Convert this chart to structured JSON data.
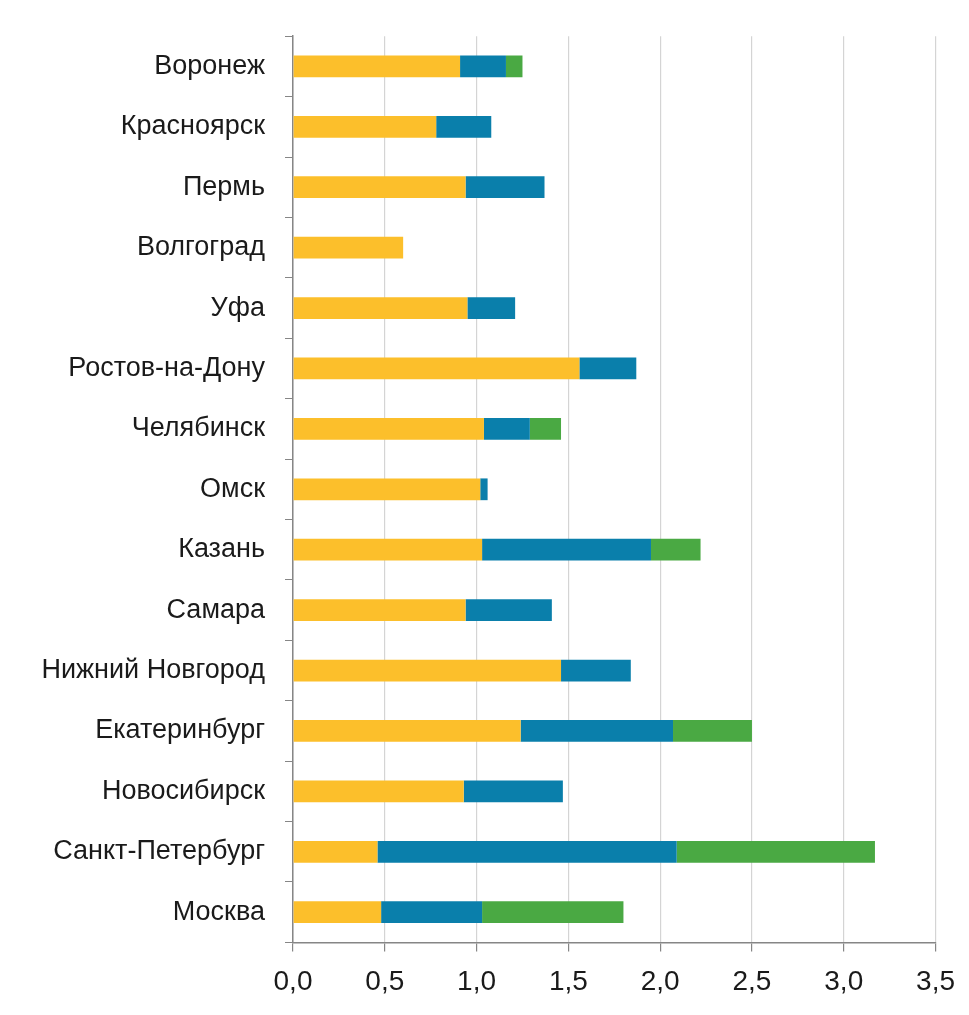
{
  "chart_data": {
    "type": "bar",
    "orientation": "horizontal",
    "stacked": true,
    "categories": [
      "Воронеж",
      "Красноярск",
      "Пермь",
      "Волгоград",
      "Уфа",
      "Ростов-на-Дону",
      "Челябинск",
      "Омск",
      "Казань",
      "Самара",
      "Нижний Новгород",
      "Екатеринбург",
      "Новосибирск",
      "Санкт-Петербург",
      "Москва"
    ],
    "series": [
      {
        "color": "#fcbf2b",
        "values": [
          0.91,
          0.78,
          0.94,
          0.6,
          0.95,
          1.56,
          1.04,
          1.02,
          1.03,
          0.94,
          1.46,
          1.24,
          0.93,
          0.46,
          0.48
        ]
      },
      {
        "color": "#0a7fab",
        "values": [
          0.25,
          0.3,
          0.43,
          null,
          0.26,
          0.31,
          0.25,
          0.04,
          0.92,
          0.47,
          0.38,
          0.83,
          0.54,
          1.63,
          0.55
        ]
      },
      {
        "color": "#4aa943",
        "values": [
          0.09,
          null,
          null,
          null,
          null,
          null,
          0.17,
          null,
          0.27,
          null,
          null,
          0.43,
          null,
          1.08,
          0.77
        ]
      }
    ],
    "xlim": [
      0,
      3.5
    ],
    "xticks": [
      {
        "value": 0,
        "label": "0,0"
      },
      {
        "value": 0.5,
        "label": "0,5"
      },
      {
        "value": 1,
        "label": "1,0"
      },
      {
        "value": 1.5,
        "label": "1,5"
      },
      {
        "value": 2,
        "label": "2,0"
      },
      {
        "value": 2.5,
        "label": "2,5"
      },
      {
        "value": 3,
        "label": "3,0"
      },
      {
        "value": 3.5,
        "label": "3,5"
      }
    ],
    "grid": "x",
    "legend": false
  }
}
